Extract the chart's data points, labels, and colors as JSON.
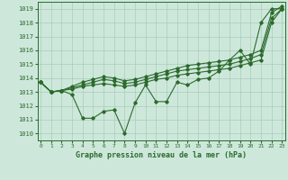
{
  "title": "Graphe pression niveau de la mer (hPa)",
  "background_color": "#cde8db",
  "grid_color": "#a8ccbb",
  "line_color": "#2d6a2d",
  "xlim": [
    -0.3,
    23.3
  ],
  "ylim": [
    1009.5,
    1019.5
  ],
  "yticks": [
    1010,
    1011,
    1012,
    1013,
    1014,
    1015,
    1016,
    1017,
    1018,
    1019
  ],
  "xticks": [
    0,
    1,
    2,
    3,
    4,
    5,
    6,
    7,
    8,
    9,
    10,
    11,
    12,
    13,
    14,
    15,
    16,
    17,
    18,
    19,
    20,
    21,
    22,
    23
  ],
  "y_jagged": [
    1013.7,
    1013.0,
    1013.1,
    1012.8,
    1011.1,
    1011.1,
    1011.6,
    1011.7,
    1010.0,
    1012.2,
    1013.5,
    1012.3,
    1012.3,
    1013.7,
    1013.5,
    1013.9,
    1014.0,
    1014.5,
    1015.3,
    1016.0,
    1015.0,
    1018.0,
    1019.0,
    1019.0
  ],
  "y_smooth1": [
    1013.7,
    1013.0,
    1013.1,
    1013.2,
    1013.4,
    1013.5,
    1013.6,
    1013.5,
    1013.4,
    1013.5,
    1013.7,
    1013.9,
    1014.0,
    1014.2,
    1014.3,
    1014.4,
    1014.5,
    1014.6,
    1014.7,
    1014.9,
    1015.1,
    1015.3,
    1018.0,
    1019.0
  ],
  "y_smooth2": [
    1013.7,
    1013.0,
    1013.1,
    1013.3,
    1013.5,
    1013.7,
    1013.9,
    1013.8,
    1013.6,
    1013.7,
    1013.9,
    1014.1,
    1014.3,
    1014.5,
    1014.6,
    1014.7,
    1014.8,
    1014.9,
    1015.0,
    1015.2,
    1015.4,
    1015.7,
    1018.3,
    1019.0
  ],
  "y_smooth3": [
    1013.7,
    1013.0,
    1013.1,
    1013.4,
    1013.7,
    1013.9,
    1014.1,
    1014.0,
    1013.8,
    1013.9,
    1014.1,
    1014.3,
    1014.5,
    1014.7,
    1014.9,
    1015.0,
    1015.1,
    1015.2,
    1015.3,
    1015.5,
    1015.7,
    1016.0,
    1018.7,
    1019.2
  ]
}
